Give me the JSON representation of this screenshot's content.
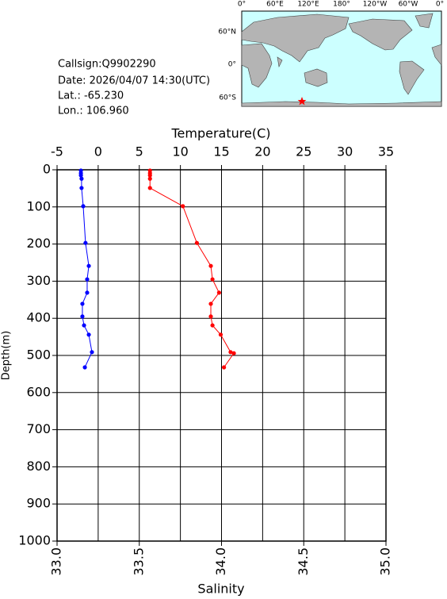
{
  "info": {
    "callsign": "Callsign:Q9902290",
    "date": "Date:  2026/04/07 14:30(UTC)",
    "lat": "Lat.:  -65.230",
    "lon": "Lon.:  106.960"
  },
  "map": {
    "lon_labels": [
      "0°",
      "60°E",
      "120°E",
      "180°",
      "120°W",
      "60°W",
      "0°"
    ],
    "lat_labels": [
      "60°N",
      "0°",
      "60°S"
    ]
  },
  "chart_data": {
    "type": "line",
    "x_label": "Salinity",
    "x2_label": "Temperature(C)",
    "y_label": "Depth(m)",
    "xlim": [
      33,
      35
    ],
    "xticks": [
      {
        "value": 33,
        "label": "33.0"
      },
      {
        "value": 33.5,
        "label": "33.5"
      },
      {
        "value": 34,
        "label": "34.0"
      },
      {
        "value": 34.5,
        "label": "34.5"
      },
      {
        "value": 35,
        "label": "35.0"
      }
    ],
    "x2lim": [
      -5,
      35
    ],
    "x2ticks": [
      -5,
      0,
      5,
      10,
      15,
      20,
      25,
      30,
      35
    ],
    "ylim": [
      1000,
      0
    ],
    "yticks": [
      0,
      100,
      200,
      300,
      400,
      500,
      600,
      700,
      800,
      900,
      1000
    ],
    "grid": true,
    "series": [
      {
        "axis": "x2",
        "color": "#ff0000",
        "y": [
          2,
          9,
          15,
          24,
          49,
          98,
          197,
          259,
          295,
          331,
          361,
          395,
          419,
          444,
          491,
          494,
          532
        ],
        "values": [
          6.3,
          6.3,
          6.3,
          6.3,
          6.3,
          10.3,
          12.0,
          13.7,
          13.9,
          14.7,
          13.7,
          13.7,
          13.9,
          14.9,
          16.1,
          16.5,
          15.3
        ]
      },
      {
        "axis": "x",
        "color": "#0000ff",
        "y": [
          2,
          9,
          15,
          24,
          49,
          98,
          197,
          259,
          295,
          331,
          361,
          395,
          419,
          444,
          491,
          532
        ],
        "values": [
          33.145,
          33.145,
          33.145,
          33.149,
          33.149,
          33.159,
          33.173,
          33.193,
          33.183,
          33.183,
          33.154,
          33.154,
          33.164,
          33.193,
          33.212,
          33.169
        ]
      }
    ]
  }
}
